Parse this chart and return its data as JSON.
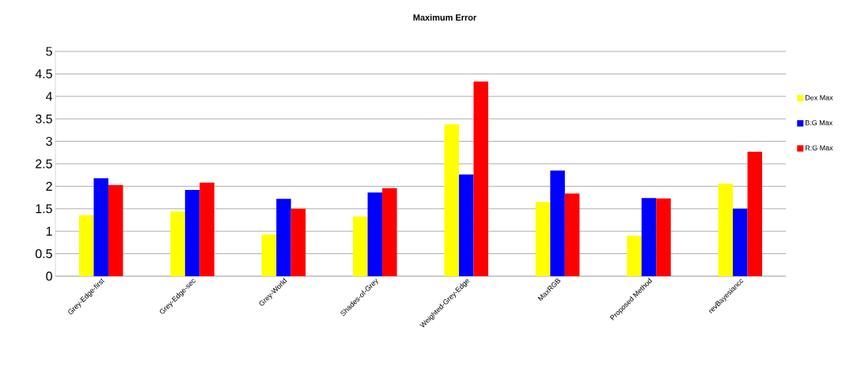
{
  "chart_data": {
    "type": "bar",
    "title": "Maximum Error",
    "categories": [
      "Grey-Edge-first",
      "Grey-Edge-sec",
      "Grey-World",
      "Shades-of-Grey",
      "Weighted-Grey-Edge",
      "MaxRGB",
      "Proposed Method",
      "revBayesiancc"
    ],
    "series": [
      {
        "name": "Dex Max",
        "color": "#ffff00",
        "values": [
          1.36,
          1.44,
          0.93,
          1.33,
          3.38,
          1.65,
          0.9,
          2.06
        ]
      },
      {
        "name": "B:G Max",
        "color": "#0000ff",
        "values": [
          2.18,
          1.92,
          1.72,
          1.86,
          2.26,
          2.35,
          1.74,
          1.5
        ]
      },
      {
        "name": "R:G Max",
        "color": "#ff0000",
        "values": [
          2.03,
          2.08,
          1.5,
          1.96,
          4.33,
          1.84,
          1.73,
          2.77
        ]
      }
    ],
    "ylim": [
      0,
      5
    ],
    "yticks": [
      0,
      0.5,
      1,
      1.5,
      2,
      2.5,
      3,
      3.5,
      4,
      4.5,
      5
    ],
    "grid": "y",
    "legend": "right"
  }
}
